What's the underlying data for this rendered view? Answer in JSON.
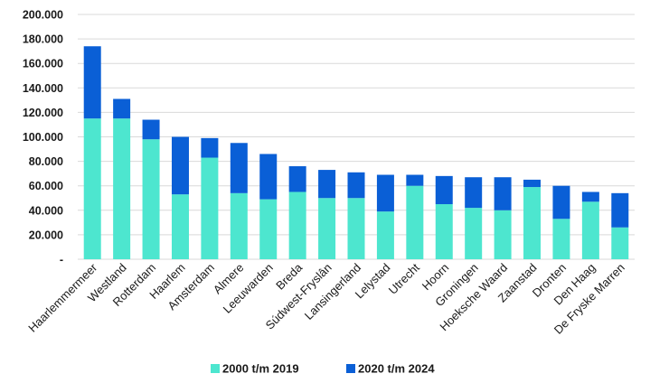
{
  "chart_data": {
    "type": "bar",
    "stacked": true,
    "title": "",
    "xlabel": "",
    "ylabel": "",
    "ylim": [
      0,
      200000
    ],
    "yticks": [
      {
        "value": 0,
        "label": "-"
      },
      {
        "value": 20000,
        "label": "20.000"
      },
      {
        "value": 40000,
        "label": "40.000"
      },
      {
        "value": 60000,
        "label": "60.000"
      },
      {
        "value": 80000,
        "label": "80.000"
      },
      {
        "value": 100000,
        "label": "100.000"
      },
      {
        "value": 120000,
        "label": "120.000"
      },
      {
        "value": 140000,
        "label": "140.000"
      },
      {
        "value": 160000,
        "label": "160.000"
      },
      {
        "value": 180000,
        "label": "180.000"
      },
      {
        "value": 200000,
        "label": "200.000"
      }
    ],
    "grid": true,
    "legend_position": "bottom",
    "categories": [
      "Haarlemmermeer",
      "Westland",
      "Rotterdam",
      "Haarlem",
      "Amsterdam",
      "Almere",
      "Leeuwarden",
      "Breda",
      "Súdwest-Fryslân",
      "Lansingerland",
      "Lelystad",
      "Utrecht",
      "Hoorn",
      "Groningen",
      "Hoeksche Waard",
      "Zaanstad",
      "Dronten",
      "Den Haag",
      "De Fryske Marren"
    ],
    "series": [
      {
        "name": "2000 t/m 2019",
        "color": "#4de6cf",
        "values": [
          115000,
          115000,
          98000,
          53000,
          83000,
          54000,
          49000,
          55000,
          50000,
          50000,
          39000,
          60000,
          45000,
          42000,
          40000,
          59000,
          33000,
          47000,
          26000
        ]
      },
      {
        "name": "2020 t/m 2024",
        "color": "#0a5fd6",
        "values": [
          59000,
          16000,
          16000,
          47000,
          16000,
          41000,
          37000,
          21000,
          23000,
          21000,
          30000,
          9000,
          23000,
          25000,
          27000,
          6000,
          27000,
          8000,
          28000
        ]
      }
    ]
  }
}
